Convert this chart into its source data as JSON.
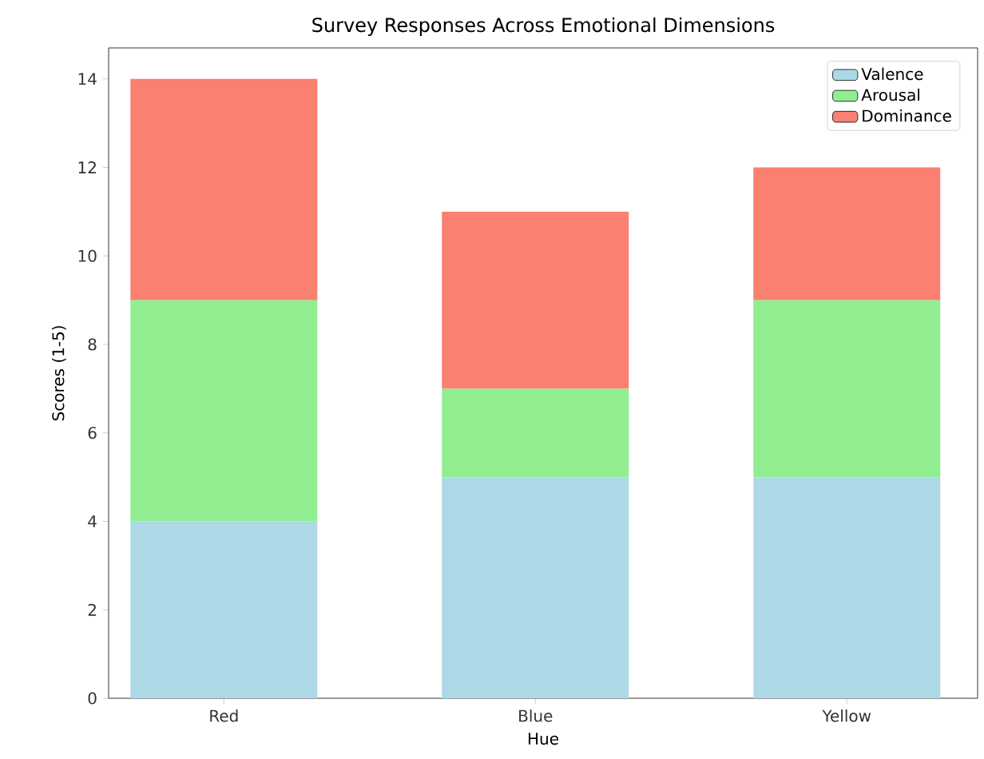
{
  "chart_data": {
    "type": "bar",
    "title": "Survey Responses Across Emotional Dimensions",
    "xlabel": "Hue",
    "ylabel": "Scores (1-5)",
    "categories": [
      "Red",
      "Blue",
      "Yellow"
    ],
    "stacked": true,
    "series": [
      {
        "name": "Valence",
        "color": "#add8e6",
        "values": [
          4,
          5,
          5
        ]
      },
      {
        "name": "Arousal",
        "color": "#90ee90",
        "values": [
          5,
          2,
          4
        ]
      },
      {
        "name": "Dominance",
        "color": "#fa8072",
        "values": [
          5,
          4,
          3
        ]
      }
    ],
    "ylim": [
      0,
      14.7
    ],
    "yticks": [
      0,
      2,
      4,
      6,
      8,
      10,
      12,
      14
    ],
    "legend": "top right"
  }
}
